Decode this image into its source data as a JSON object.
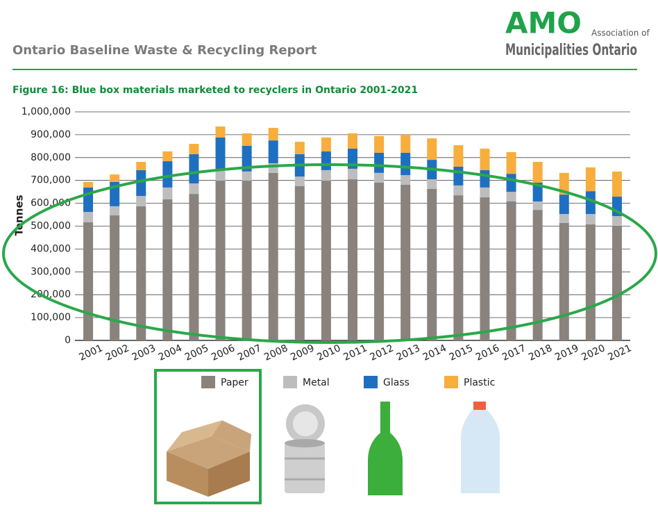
{
  "header": {
    "title": "Ontario Baseline Waste & Recycling Report"
  },
  "logo": {
    "name": "AMO",
    "line1": "Association of",
    "line2": "Municipalities Ontario"
  },
  "chart_data": {
    "type": "stacked-bar",
    "title": "Figure 16: Blue box materials marketed to recyclers in Ontario 2001-2021",
    "y_label": "Tonnes",
    "categories": [
      "2001",
      "2002",
      "2003",
      "2004",
      "2005",
      "2006",
      "2007",
      "2008",
      "2009",
      "2010",
      "2011",
      "2012",
      "2013",
      "2014",
      "2015",
      "2016",
      "2017",
      "2018",
      "2019",
      "2020",
      "2021"
    ],
    "series": [
      {
        "name": "Paper",
        "color": "#8a837d",
        "values": [
          517000,
          547000,
          587000,
          617000,
          641000,
          699000,
          699000,
          733000,
          675000,
          699000,
          705000,
          690000,
          681000,
          663000,
          635000,
          626000,
          608000,
          571000,
          514000,
          508000,
          502000
        ]
      },
      {
        "name": "Metal",
        "color": "#bdbdbd",
        "values": [
          45000,
          40000,
          45000,
          52000,
          46000,
          46000,
          40000,
          42000,
          42000,
          46000,
          46000,
          43000,
          42000,
          42000,
          43000,
          43000,
          42000,
          37000,
          39000,
          45000,
          42000
        ]
      },
      {
        "name": "Glass",
        "color": "#1f6fc0",
        "values": [
          107000,
          106000,
          113000,
          115000,
          128000,
          143000,
          112000,
          100000,
          98000,
          82000,
          88000,
          88000,
          98000,
          85000,
          82000,
          76000,
          79000,
          82000,
          85000,
          100000,
          85000
        ]
      },
      {
        "name": "Plastic",
        "color": "#f7ae3d",
        "values": [
          24000,
          33000,
          36000,
          43000,
          45000,
          48000,
          55000,
          55000,
          54000,
          61000,
          67000,
          73000,
          79000,
          94000,
          94000,
          94000,
          95000,
          91000,
          95000,
          104000,
          110000
        ]
      }
    ],
    "ylim": [
      0,
      1000000
    ],
    "yticks": [
      0,
      {
        "value": 100000,
        "label": "100,000"
      },
      {
        "value": 200000,
        "label": "200,000"
      },
      {
        "value": 300000,
        "label": "300,000"
      },
      {
        "value": 400000,
        "label": "400,000"
      },
      {
        "value": 500000,
        "label": "500,000"
      },
      {
        "value": 600000,
        "label": "600,000"
      },
      {
        "value": 700000,
        "label": "700,000"
      },
      {
        "value": 800000,
        "label": "800,000"
      },
      {
        "value": 900000,
        "label": "900,000"
      },
      {
        "value": 1000000,
        "label": "1,000,000"
      }
    ],
    "grid": true
  }
}
